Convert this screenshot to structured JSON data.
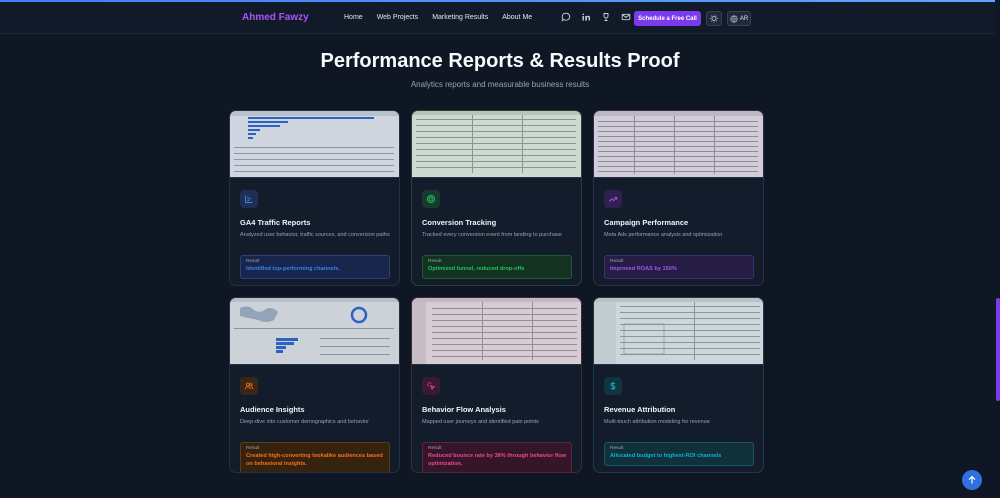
{
  "header": {
    "brand": "Ahmed Fawzy",
    "nav": [
      "Home",
      "Web Projects",
      "Marketing Results",
      "About Me"
    ],
    "icons": [
      "chat-icon",
      "linkedin-icon",
      "trophy-icon",
      "mail-icon"
    ],
    "cta_label": "Schedule a Free Call",
    "lang_label": "AR"
  },
  "section": {
    "title": "Performance Reports & Results Proof",
    "subtitle": "Analytics reports and measurable business results",
    "result_label": "Result"
  },
  "cards": [
    {
      "title": "GA4 Traffic Reports",
      "description": "Analyzed user behavior, traffic sources, and conversion paths",
      "result": "Identified top-performing channels.",
      "icon": "bar-chart-icon",
      "accent": "#3b82f6"
    },
    {
      "title": "Conversion Tracking",
      "description": "Tracked every conversion event from landing to purchase",
      "result": "Optimized funnel, reduced drop-offs",
      "icon": "target-icon",
      "accent": "#22c55e"
    },
    {
      "title": "Campaign Performance",
      "description": "Meta Ads performance analysis and optimization",
      "result": "Improved ROAS by 150%",
      "icon": "trending-up-icon",
      "accent": "#a855f7"
    },
    {
      "title": "Audience Insights",
      "description": "Deep-dive into customer demographics and behavior",
      "result": "Created high-converting lookalike audiences based on behavioral insights.",
      "icon": "users-icon",
      "accent": "#f97316"
    },
    {
      "title": "Behavior Flow Analysis",
      "description": "Mapped user journeys and identified pain points",
      "result": "Reduced bounce rate by 38% through behavior flow optimization.",
      "icon": "click-icon",
      "accent": "#ec4899"
    },
    {
      "title": "Revenue Attribution",
      "description": "Multi-touch attribution modeling for revenue",
      "result": "Allocated budget to highest-ROI channels",
      "icon": "dollar-icon",
      "accent": "#06b6d4"
    }
  ]
}
